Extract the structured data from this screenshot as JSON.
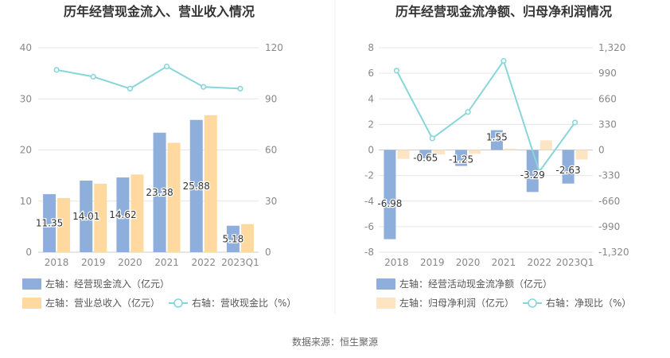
{
  "source_text": "数据来源：恒生聚源",
  "colors": {
    "bar_blue": "#8eaedc",
    "bar_orange": "#ffd9a0",
    "bar_orange_light": "#fde4c3",
    "line_teal": "#88d5da",
    "axis_text": "#888888",
    "grid": "#e6e6e6",
    "title": "#333333"
  },
  "chart_data": [
    {
      "type": "bar",
      "title": "历年经营现金流入、营业收入情况",
      "categories": [
        "2018",
        "2019",
        "2020",
        "2021",
        "2022",
        "2023Q1"
      ],
      "left_axis": {
        "ylim": [
          0,
          40
        ],
        "ticks": [
          "0",
          "10",
          "20",
          "30",
          "40"
        ]
      },
      "right_axis": {
        "ylim": [
          0,
          120
        ],
        "ticks": [
          "0",
          "30",
          "60",
          "90",
          "120"
        ]
      },
      "series": [
        {
          "name": "左轴：经营现金流入（亿元）",
          "kind": "bar",
          "axis": "left",
          "values": [
            11.35,
            14.01,
            14.62,
            23.38,
            25.88,
            5.18
          ],
          "labels": [
            "11.35",
            "14.01",
            "14.62",
            "23.38",
            "25.88",
            "5.18"
          ]
        },
        {
          "name": "左轴：营业总收入（亿元）",
          "kind": "bar",
          "axis": "left",
          "values": [
            10.6,
            13.4,
            15.2,
            21.4,
            26.8,
            5.5
          ]
        },
        {
          "name": "右轴：营收现金比（%）",
          "kind": "line",
          "axis": "right",
          "values": [
            107,
            103,
            96,
            109,
            97,
            96
          ]
        }
      ],
      "grid": true
    },
    {
      "type": "bar",
      "title": "历年经营现金流净额、归母净利润情况",
      "categories": [
        "2018",
        "2019",
        "2020",
        "2021",
        "2022",
        "2023Q1"
      ],
      "left_axis": {
        "ylim": [
          -8,
          8
        ],
        "ticks": [
          "-8",
          "-6",
          "-4",
          "-2",
          "0",
          "2",
          "4",
          "6",
          "8"
        ]
      },
      "right_axis": {
        "ylim": [
          -1320,
          1320
        ],
        "ticks": [
          "-1,320",
          "-990",
          "-660",
          "-330",
          "0",
          "330",
          "660",
          "990",
          "1,320"
        ]
      },
      "series": [
        {
          "name": "左轴：经营活动现金流净额（亿元）",
          "kind": "bar",
          "axis": "left",
          "values": [
            -6.98,
            -0.65,
            -1.25,
            1.55,
            -3.29,
            -2.63
          ],
          "labels": [
            "-6.98",
            "-0.65",
            "-1.25",
            "1.55",
            "-3.29",
            "-2.63"
          ]
        },
        {
          "name": "左轴：归母净利润（亿元）",
          "kind": "bar",
          "axis": "left",
          "values": [
            -0.7,
            -0.35,
            -0.3,
            0.1,
            0.75,
            -0.75
          ]
        },
        {
          "name": "右轴：净现比（%）",
          "kind": "line",
          "axis": "right",
          "values": [
            1025,
            150,
            490,
            1150,
            -280,
            355
          ]
        }
      ],
      "grid": true
    }
  ]
}
